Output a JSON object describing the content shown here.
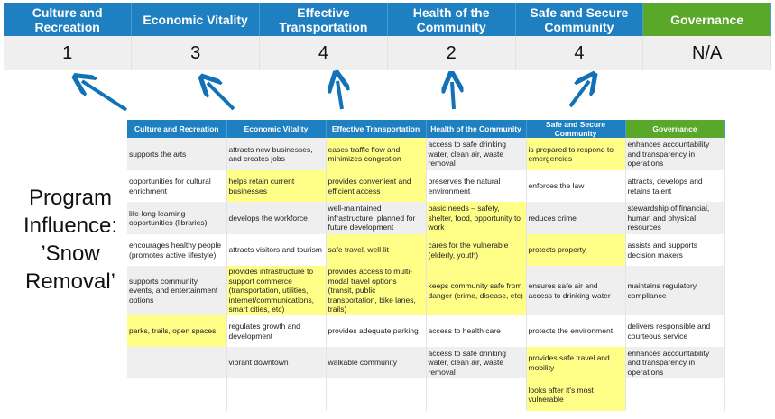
{
  "summary": {
    "categories": [
      "Culture and Recreation",
      "Economic Vitality",
      "Effective Transportation",
      "Health of the Community",
      "Safe and Secure Community",
      "Governance"
    ],
    "scores": [
      "1",
      "3",
      "4",
      "2",
      "4",
      "N/A"
    ],
    "header_colors": {
      "blue": "#1e7fc1",
      "green": "#5aa82a"
    }
  },
  "program_influence": {
    "lines": [
      "Program",
      "Influence:",
      "’Snow",
      "Removal’"
    ]
  },
  "arrow_color": "#1272b8",
  "highlight_color": "#ffff88",
  "grid": {
    "headers": [
      "Culture and Recreation",
      "Economic Vitality",
      "Effective Transportation",
      "Health of the Community",
      "Safe and Secure Community",
      "Governance"
    ],
    "rows": [
      {
        "cells": [
          "supports the arts",
          "attracts new businesses, and creates jobs",
          "eases traffic flow and minimizes congestion",
          "access to safe drinking water, clean air, waste removal",
          "is prepared to respond to emergencies",
          "enhances accountability and transparency in operations"
        ],
        "highlighted": [
          2,
          4
        ]
      },
      {
        "cells": [
          "opportunities for cultural enrichment",
          "helps retain current businesses",
          "provides convenient and efficient access",
          "preserves the natural environment",
          "enforces the law",
          "attracts, develops and retains talent"
        ],
        "highlighted": [
          1,
          2
        ]
      },
      {
        "cells": [
          "life-long learning opportunities (libraries)",
          "develops the workforce",
          "well-maintained infrastructure, planned for future development",
          "basic needs – safety, shelter, food, opportunity to work",
          "reduces crime",
          "stewardship of financial, human and physical resources"
        ],
        "highlighted": [
          3
        ]
      },
      {
        "cells": [
          "encourages healthy people (promotes active lifestyle)",
          "attracts visitors and tourism",
          "safe travel, well-lit",
          "cares for the vulnerable (elderly, youth)",
          "protects property",
          "assists and supports decision makers"
        ],
        "highlighted": [
          2,
          3,
          4
        ]
      },
      {
        "cells": [
          "supports community events, and entertainment options",
          "provides infrastructure to support commerce (transportation, utilities, internet/communications, smart cities, etc)",
          "provides access to multi-modal travel options (transit, public transportation, bike lanes, trails)",
          "keeps community safe from danger (crime, disease, etc)",
          "ensures safe air and access to drinking water",
          "maintains regulatory compliance"
        ],
        "highlighted": [
          1,
          2,
          3
        ]
      },
      {
        "cells": [
          "parks, trails, open spaces",
          "regulates growth and development",
          "provides adequate parking",
          "access to health care",
          "protects the environment",
          "delivers responsible and courteous service"
        ],
        "highlighted": [
          0
        ]
      },
      {
        "cells": [
          "",
          "vibrant downtown",
          "walkable community",
          "access to safe drinking water, clean air, waste removal",
          "provides safe travel and mobility",
          "enhances accountability and transparency in operations"
        ],
        "highlighted": [
          4
        ]
      },
      {
        "cells": [
          "",
          "",
          "",
          "",
          "looks after it's most vulnerable",
          ""
        ],
        "highlighted": [
          4
        ]
      }
    ]
  }
}
